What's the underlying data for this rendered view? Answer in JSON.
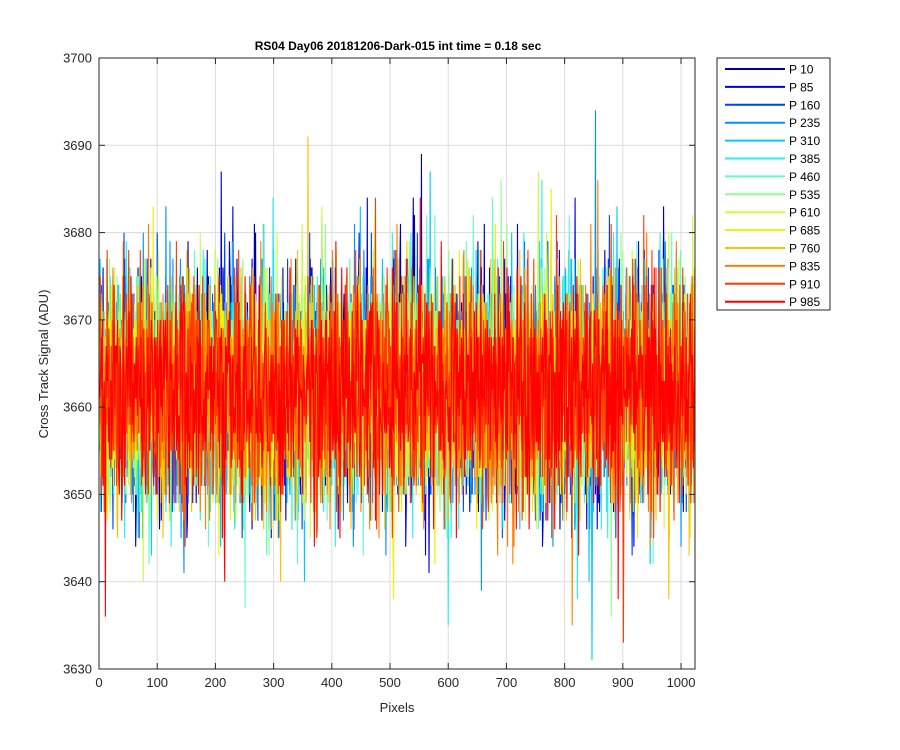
{
  "chart_data": {
    "type": "line",
    "title": "RS04 Day06 20181206-Dark-015 int time = 0.18 sec",
    "xlabel": "Pixels",
    "ylabel": "Cross Track Signal (ADU)",
    "xlim": [
      0,
      1024
    ],
    "ylim": [
      3630,
      3700
    ],
    "x_ticks": [
      0,
      100,
      200,
      300,
      400,
      500,
      600,
      700,
      800,
      900,
      1000
    ],
    "y_ticks": [
      3630,
      3640,
      3650,
      3660,
      3670,
      3680,
      3690,
      3700
    ],
    "grid": true,
    "legend_position": "outside-top-right",
    "signal_mean": 3662,
    "signal_std": 6.5,
    "series": [
      {
        "name": "P 10",
        "color": "#0000a8",
        "noise_max": 3689,
        "noise_min": 3644,
        "seed": 11
      },
      {
        "name": "P 85",
        "color": "#0000e0",
        "noise_max": 3687,
        "noise_min": 3641,
        "seed": 23
      },
      {
        "name": "P 160",
        "color": "#0040ff",
        "noise_max": 3682,
        "noise_min": 3643,
        "seed": 37
      },
      {
        "name": "P 235",
        "color": "#0090ff",
        "noise_max": 3694,
        "noise_min": 3639,
        "seed": 41
      },
      {
        "name": "P 310",
        "color": "#00c8ff",
        "noise_max": 3687,
        "noise_min": 3631,
        "seed": 53
      },
      {
        "name": "P 385",
        "color": "#22f0f0",
        "noise_max": 3686,
        "noise_min": 3635,
        "seed": 67
      },
      {
        "name": "P 460",
        "color": "#60ffc8",
        "noise_max": 3684,
        "noise_min": 3637,
        "seed": 71
      },
      {
        "name": "P 535",
        "color": "#90ff90",
        "noise_max": 3686,
        "noise_min": 3636,
        "seed": 83
      },
      {
        "name": "P 610",
        "color": "#c8ff40",
        "noise_max": 3687,
        "noise_min": 3640,
        "seed": 97
      },
      {
        "name": "P 685",
        "color": "#f0f000",
        "noise_max": 3685,
        "noise_min": 3638,
        "seed": 101
      },
      {
        "name": "P 760",
        "color": "#ffc000",
        "noise_max": 3691,
        "noise_min": 3638,
        "seed": 113
      },
      {
        "name": "P 835",
        "color": "#ff8000",
        "noise_max": 3686,
        "noise_min": 3635,
        "seed": 127
      },
      {
        "name": "P 910",
        "color": "#ff3c00",
        "noise_max": 3684,
        "noise_min": 3633,
        "seed": 131
      },
      {
        "name": "P 985",
        "color": "#ff0000",
        "noise_max": 3684,
        "noise_min": 3636,
        "seed": 139
      }
    ]
  }
}
